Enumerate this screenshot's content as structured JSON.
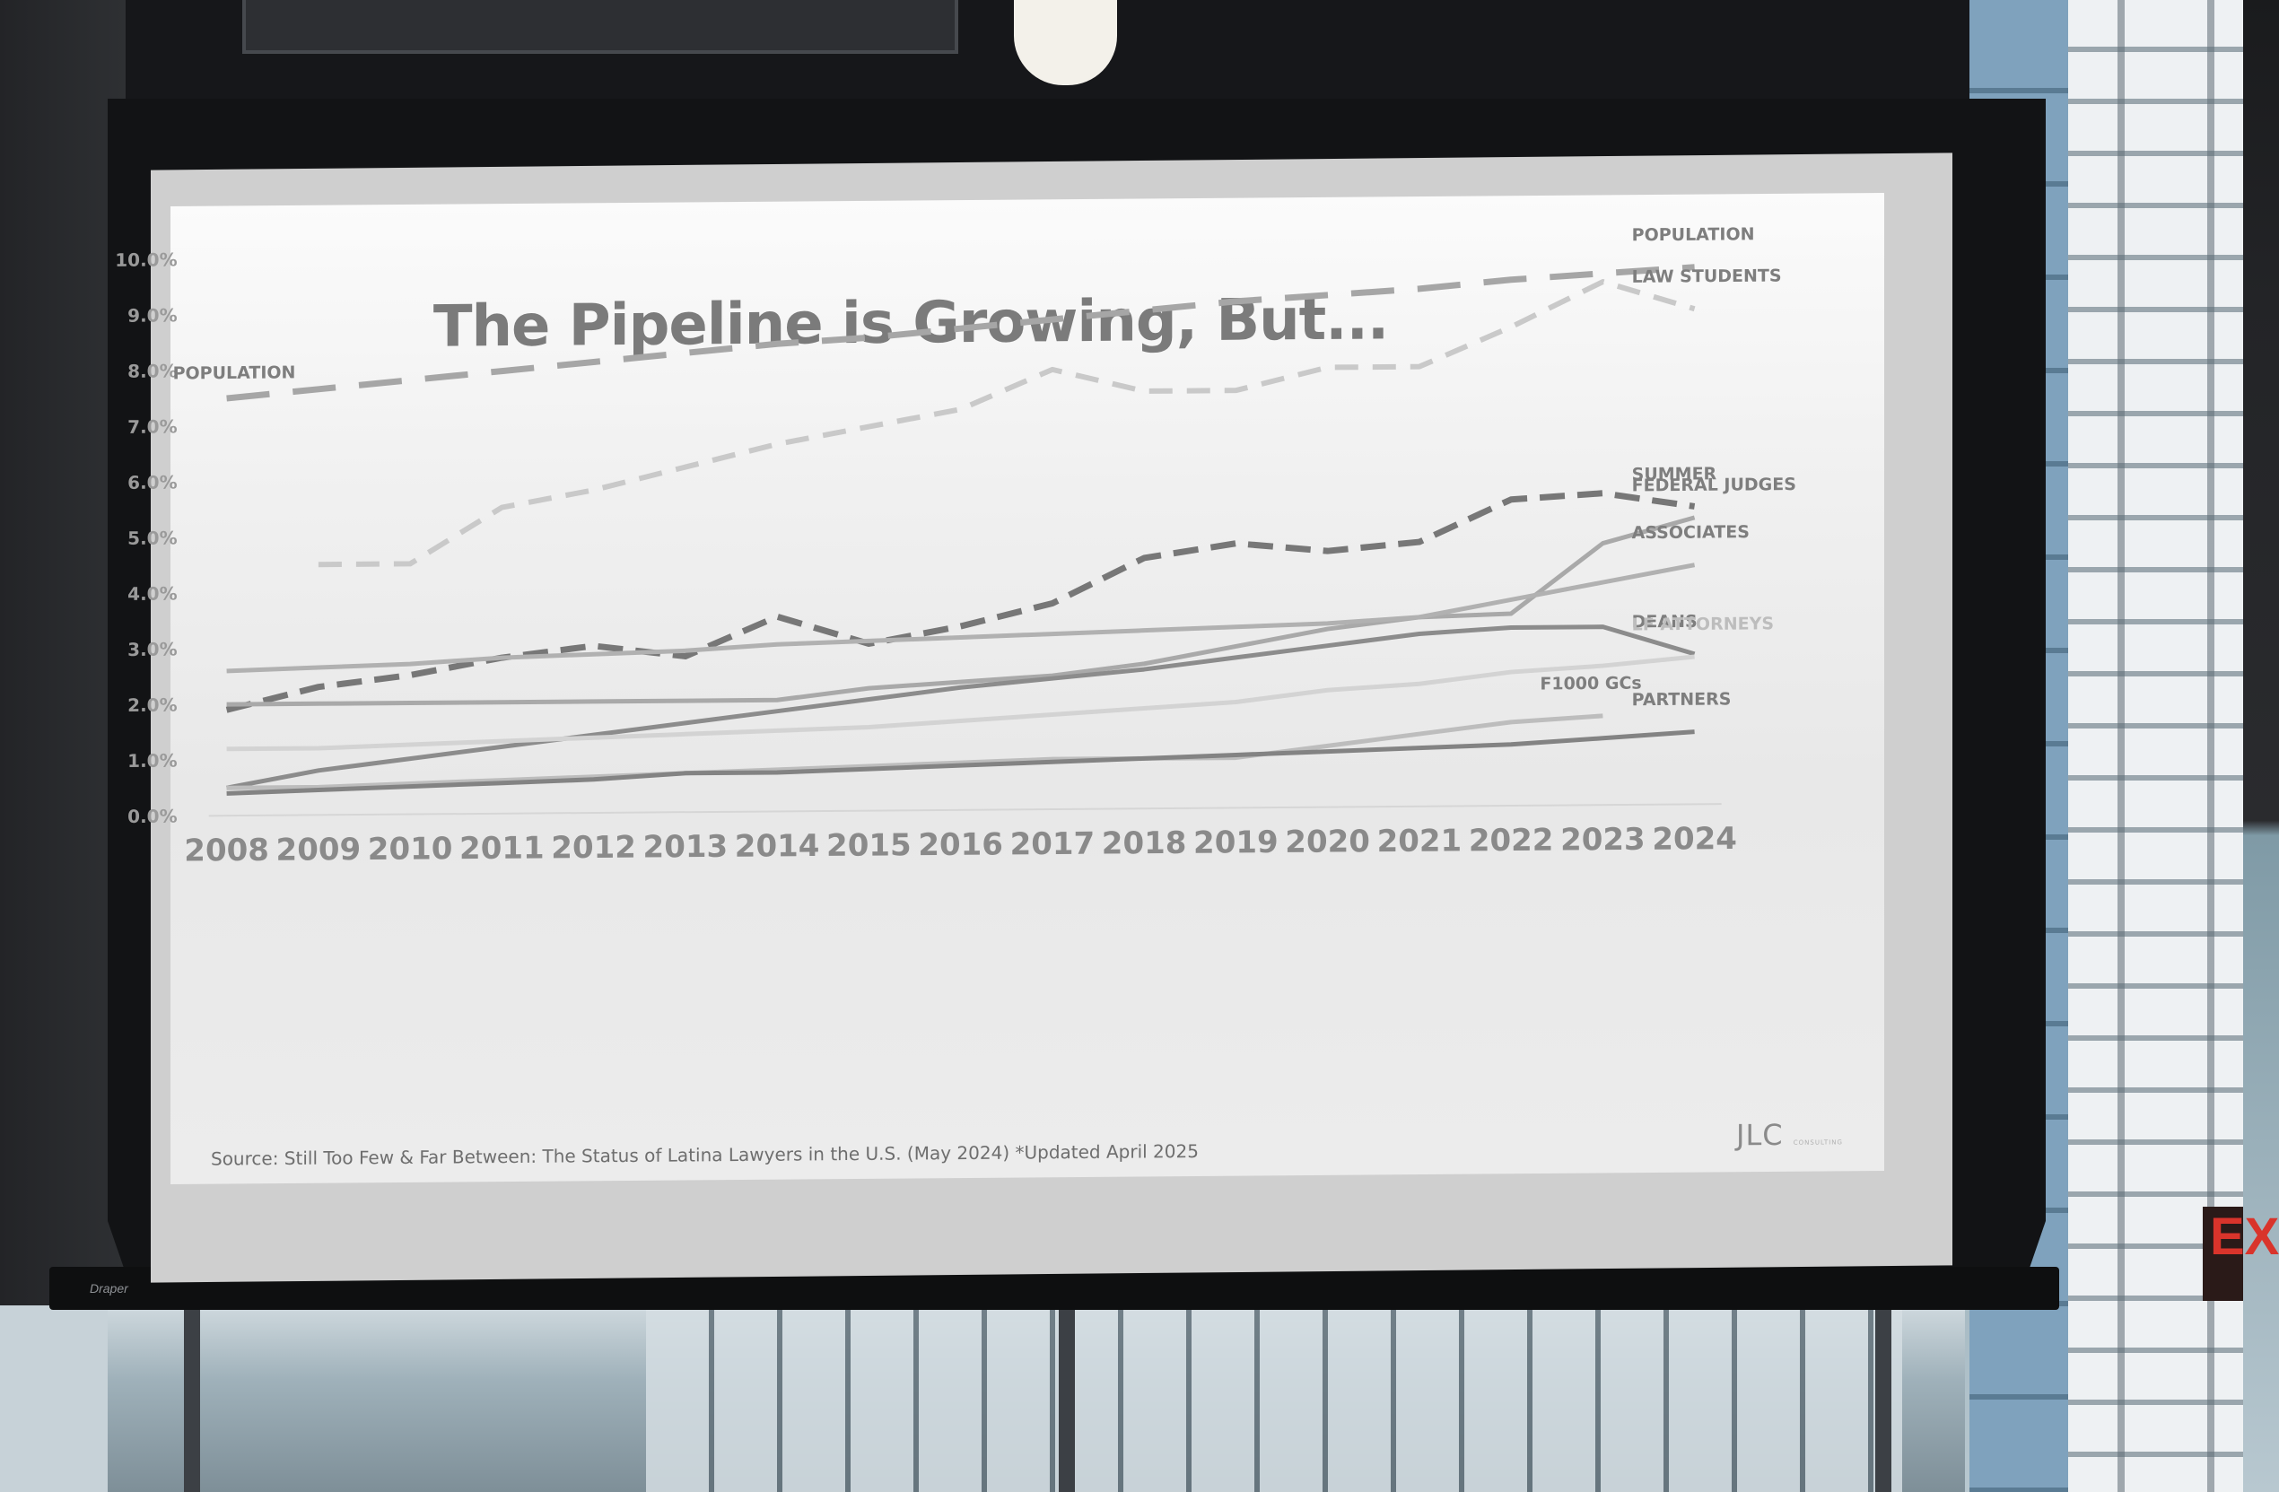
{
  "slide": {
    "title": "The Pipeline is Growing, But...",
    "source": "Source:  Still Too Few & Far Between:  The Status of Latina Lawyers in the U.S. (May 2024) *Updated April 2025",
    "logo": "JLC",
    "logo_sub": "CONSULTING"
  },
  "projector": {
    "brand": "Draper"
  },
  "exit_sign": {
    "text": "EX"
  },
  "chart_data": {
    "type": "line",
    "title": "The Pipeline is Growing, But...",
    "xlabel": "",
    "ylabel": "",
    "x": [
      "2008",
      "2009",
      "2010",
      "2011",
      "2012",
      "2013",
      "2014",
      "2015",
      "2016",
      "2017",
      "2018",
      "2019",
      "2020",
      "2021",
      "2022",
      "2023",
      "2024"
    ],
    "ylim": [
      0,
      10
    ],
    "y_ticks": [
      "0.0%",
      "1.0%",
      "2.0%",
      "3.0%",
      "4.0%",
      "5.0%",
      "6.0%",
      "7.0%",
      "8.0%",
      "9.0%",
      "10.0%"
    ],
    "grid": false,
    "legend": "direct labels at line ends",
    "series": [
      {
        "name": "POPULATION",
        "start_label": "POPULATION",
        "style": "long-dash",
        "color": "#a6a6a6",
        "values": [
          7.5,
          7.65,
          7.8,
          7.95,
          8.1,
          8.25,
          8.4,
          8.5,
          8.65,
          8.8,
          8.95,
          9.1,
          9.2,
          9.3,
          9.45,
          9.55,
          9.65
        ]
      },
      {
        "name": "LAW STUDENTS",
        "style": "short-dash",
        "color": "#c9c9c9",
        "values": [
          null,
          4.5,
          4.5,
          5.5,
          5.8,
          6.2,
          6.6,
          6.9,
          7.2,
          7.9,
          7.5,
          7.5,
          7.9,
          7.9,
          8.6,
          9.4,
          8.9
        ]
      },
      {
        "name": "SUMMER",
        "style": "dash",
        "color": "#777777",
        "values": [
          1.9,
          2.3,
          2.5,
          2.8,
          3.0,
          2.8,
          3.5,
          3.0,
          3.3,
          3.7,
          4.5,
          4.75,
          4.6,
          4.75,
          5.5,
          5.6,
          5.35
        ]
      },
      {
        "name": "FEDERAL JUDGES",
        "style": "solid",
        "color": "#a9a9a9",
        "values": [
          2.0,
          2.0,
          2.0,
          2.0,
          2.0,
          2.0,
          2.0,
          2.2,
          2.3,
          2.4,
          2.6,
          2.9,
          3.2,
          3.4,
          3.45,
          4.7,
          5.15
        ]
      },
      {
        "name": "ASSOCIATES",
        "style": "solid",
        "color": "#b1b1b1",
        "values": [
          2.6,
          2.65,
          2.7,
          2.8,
          2.85,
          2.9,
          3.0,
          3.05,
          3.1,
          3.15,
          3.2,
          3.25,
          3.3,
          3.4,
          3.7,
          4.0,
          4.3
        ]
      },
      {
        "name": "DEANS",
        "style": "solid",
        "color": "#8c8c8c",
        "values": [
          0.5,
          0.8,
          1.0,
          1.2,
          1.4,
          1.6,
          1.8,
          2.0,
          2.2,
          2.35,
          2.5,
          2.7,
          2.9,
          3.1,
          3.2,
          3.2,
          2.7
        ]
      },
      {
        "name": "LF ATTORNEYS",
        "style": "solid",
        "color": "#d3d3d3",
        "values": [
          1.2,
          1.2,
          1.25,
          1.3,
          1.35,
          1.4,
          1.45,
          1.5,
          1.6,
          1.7,
          1.8,
          1.9,
          2.1,
          2.2,
          2.4,
          2.5,
          2.65
        ]
      },
      {
        "name": "F1000 GCs",
        "style": "solid",
        "color": "#bdbdbd",
        "values": [
          0.5,
          0.5,
          0.55,
          0.6,
          0.65,
          0.7,
          0.75,
          0.8,
          0.85,
          0.9,
          0.9,
          0.9,
          1.1,
          1.3,
          1.5,
          1.6,
          null
        ]
      },
      {
        "name": "PARTNERS",
        "style": "solid",
        "color": "#838383",
        "values": [
          0.4,
          0.45,
          0.5,
          0.55,
          0.6,
          0.7,
          0.7,
          0.75,
          0.8,
          0.85,
          0.9,
          0.95,
          1.0,
          1.05,
          1.1,
          1.2,
          1.3
        ]
      }
    ]
  }
}
